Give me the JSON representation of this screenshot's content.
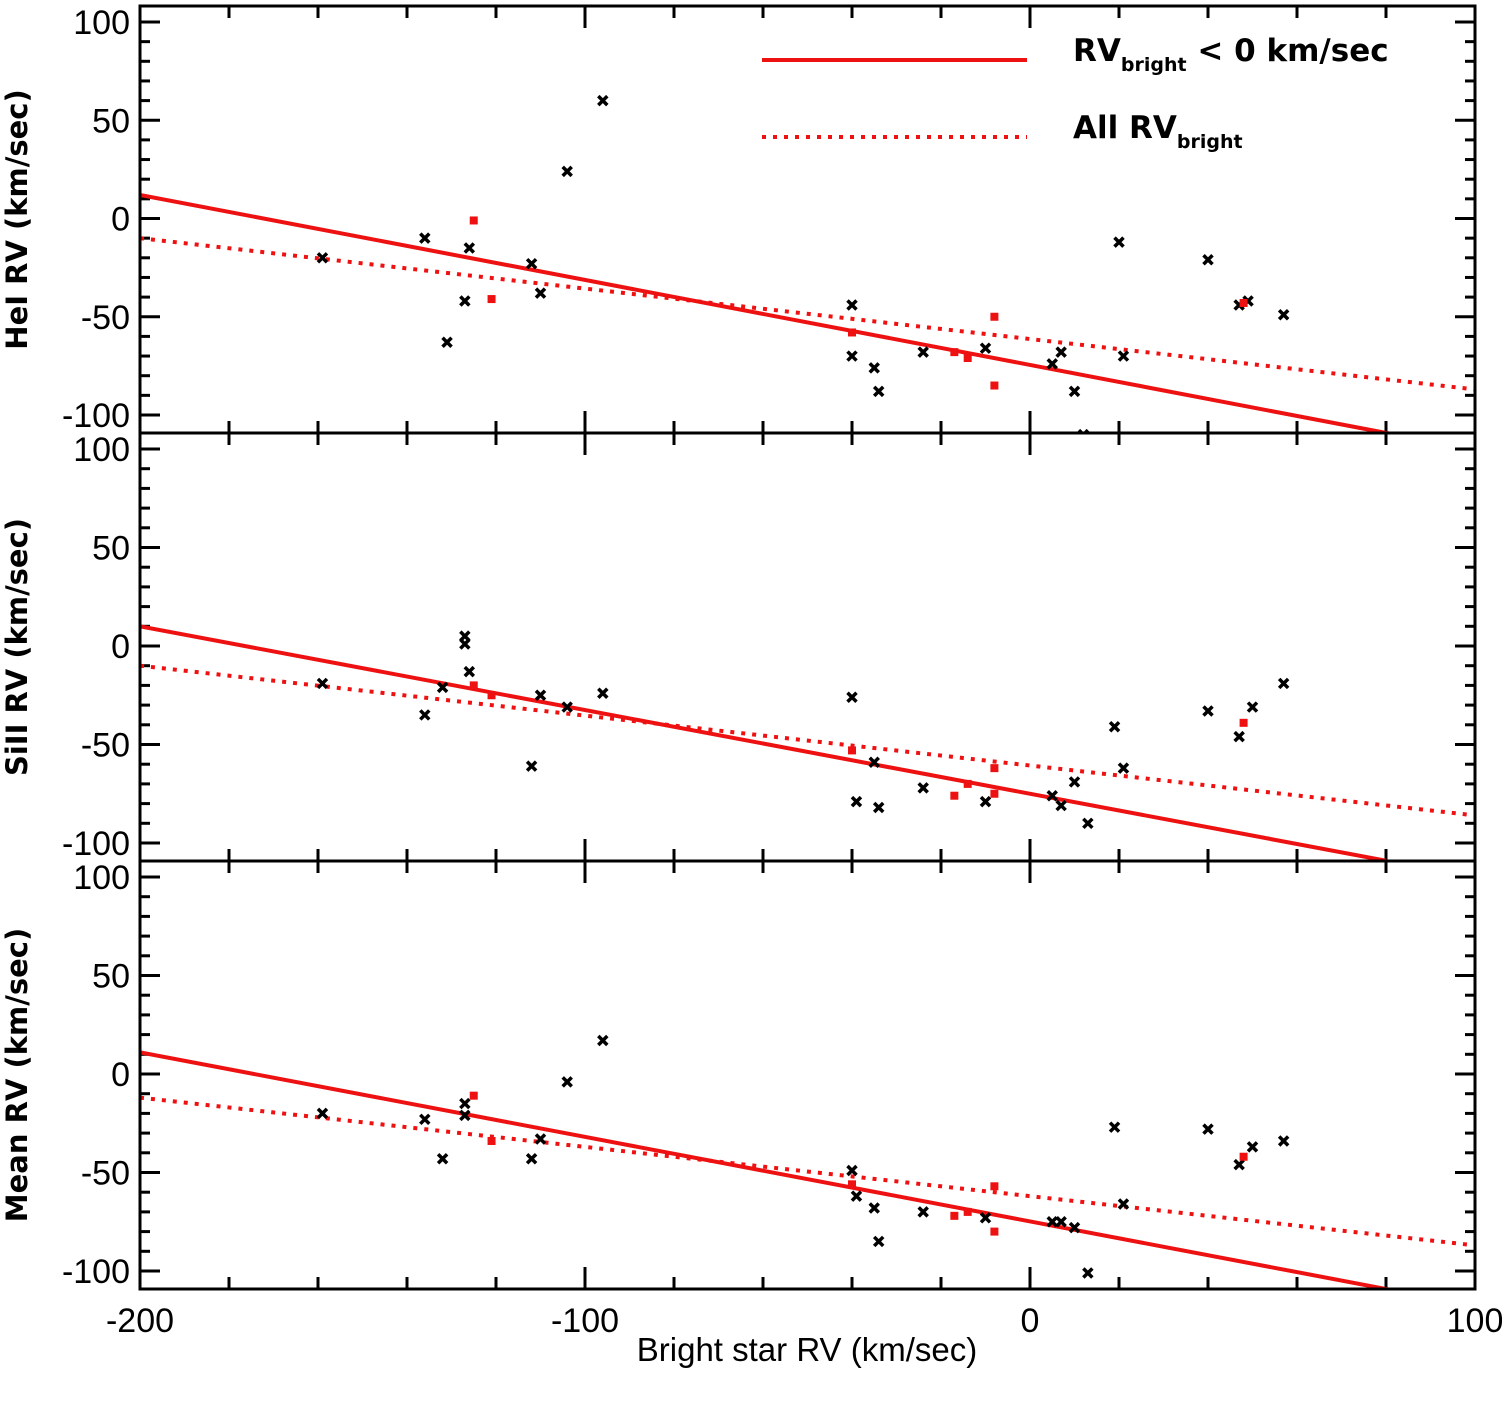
{
  "chart_data": {
    "type": "scatter",
    "xlabel": "Bright star RV (km/sec)",
    "xlim": [
      -200,
      100
    ],
    "xticks": [
      -200,
      -100,
      0,
      100
    ],
    "colors": {
      "line": "#ee1111",
      "red_marker": "#ee1111",
      "cross_marker": "#000000"
    },
    "legend": {
      "placement": "top-right",
      "entries": [
        {
          "style": "solid",
          "prefix": "RV",
          "sub": "bright",
          "suffix": " < 0 km/sec"
        },
        {
          "style": "dotted",
          "prefix": "All  RV",
          "sub": "bright",
          "suffix": ""
        }
      ]
    },
    "panels": [
      {
        "ylabel": "HeI RV  (km/sec)",
        "ylim": [
          -110,
          110
        ],
        "yticks": [
          100,
          50,
          0,
          -50,
          -100
        ],
        "fit_solid": [
          [
            -200,
            12
          ],
          [
            82,
            -110
          ]
        ],
        "fit_dotted": [
          [
            -200,
            -10
          ],
          [
            100,
            -87
          ]
        ],
        "crosses": [
          [
            -159,
            -20
          ],
          [
            -136,
            -10
          ],
          [
            -131,
            -63
          ],
          [
            -127,
            -42
          ],
          [
            -126,
            -15
          ],
          [
            -112,
            -23
          ],
          [
            -110,
            -38
          ],
          [
            -104,
            24
          ],
          [
            -96,
            60
          ],
          [
            -40,
            -44
          ],
          [
            -40,
            -70
          ],
          [
            -35,
            -76
          ],
          [
            -34,
            -88
          ],
          [
            -24,
            -68
          ],
          [
            -10,
            -66
          ],
          [
            5,
            -74
          ],
          [
            7,
            -68
          ],
          [
            10,
            -88
          ],
          [
            12,
            -110
          ],
          [
            20,
            -12
          ],
          [
            21,
            -70
          ],
          [
            40,
            -21
          ],
          [
            47,
            -44
          ],
          [
            49,
            -42
          ],
          [
            57,
            -49
          ]
        ],
        "squares": [
          [
            -125,
            -1
          ],
          [
            -121,
            -41
          ],
          [
            -40,
            -58
          ],
          [
            -17,
            -68
          ],
          [
            -14,
            -71
          ],
          [
            -8,
            -50
          ],
          [
            -8,
            -85
          ],
          [
            48,
            -43
          ]
        ]
      },
      {
        "ylabel": "SiII  RV   (km/sec)",
        "ylim": [
          -110,
          110
        ],
        "yticks": [
          100,
          50,
          0,
          -50,
          -100
        ],
        "fit_solid": [
          [
            -200,
            10
          ],
          [
            80,
            -109
          ]
        ],
        "fit_dotted": [
          [
            -200,
            -10
          ],
          [
            100,
            -86
          ]
        ],
        "crosses": [
          [
            -159,
            -19
          ],
          [
            -136,
            -35
          ],
          [
            -132,
            -21
          ],
          [
            -127,
            5
          ],
          [
            -127,
            1
          ],
          [
            -126,
            -13
          ],
          [
            -112,
            -61
          ],
          [
            -110,
            -25
          ],
          [
            -104,
            -31
          ],
          [
            -96,
            -24
          ],
          [
            -40,
            -26
          ],
          [
            -39,
            -79
          ],
          [
            -35,
            -59
          ],
          [
            -34,
            -82
          ],
          [
            -24,
            -72
          ],
          [
            -10,
            -79
          ],
          [
            5,
            -76
          ],
          [
            7,
            -81
          ],
          [
            10,
            -69
          ],
          [
            13,
            -90
          ],
          [
            19,
            -41
          ],
          [
            21,
            -62
          ],
          [
            40,
            -33
          ],
          [
            47,
            -46
          ],
          [
            50,
            -31
          ],
          [
            57,
            -19
          ]
        ],
        "squares": [
          [
            -125,
            -20
          ],
          [
            -121,
            -25
          ],
          [
            -40,
            -53
          ],
          [
            -17,
            -76
          ],
          [
            -14,
            -70
          ],
          [
            -8,
            -62
          ],
          [
            -8,
            -75
          ],
          [
            48,
            -39
          ]
        ]
      },
      {
        "ylabel": "Mean RV  (km/sec)",
        "ylim": [
          -110,
          110
        ],
        "yticks": [
          100,
          50,
          0,
          -50,
          -100
        ],
        "fit_solid": [
          [
            -200,
            11
          ],
          [
            82,
            -110
          ]
        ],
        "fit_dotted": [
          [
            -200,
            -12
          ],
          [
            100,
            -87
          ]
        ],
        "crosses": [
          [
            -159,
            -20
          ],
          [
            -136,
            -23
          ],
          [
            -132,
            -43
          ],
          [
            -127,
            -21
          ],
          [
            -127,
            -15
          ],
          [
            -112,
            -43
          ],
          [
            -110,
            -33
          ],
          [
            -104,
            -4
          ],
          [
            -96,
            17
          ],
          [
            -40,
            -49
          ],
          [
            -39,
            -62
          ],
          [
            -35,
            -68
          ],
          [
            -34,
            -85
          ],
          [
            -24,
            -70
          ],
          [
            -10,
            -73
          ],
          [
            5,
            -75
          ],
          [
            7,
            -75
          ],
          [
            10,
            -78
          ],
          [
            13,
            -101
          ],
          [
            19,
            -27
          ],
          [
            21,
            -66
          ],
          [
            40,
            -28
          ],
          [
            47,
            -46
          ],
          [
            50,
            -37
          ],
          [
            57,
            -34
          ]
        ],
        "squares": [
          [
            -125,
            -11
          ],
          [
            -121,
            -34
          ],
          [
            -40,
            -56
          ],
          [
            -17,
            -72
          ],
          [
            -14,
            -70
          ],
          [
            -8,
            -57
          ],
          [
            -8,
            -80
          ],
          [
            48,
            -42
          ]
        ]
      }
    ]
  }
}
